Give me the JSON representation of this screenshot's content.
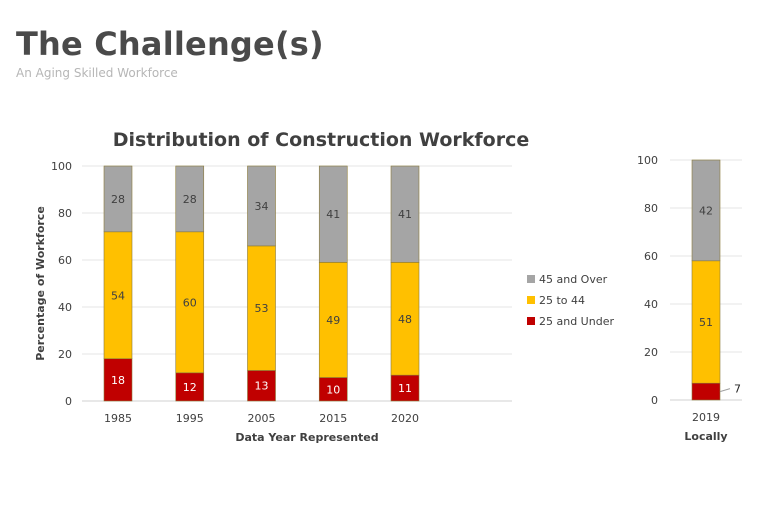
{
  "page": {
    "title": "The Challenge(s)",
    "subtitle": "An Aging Skilled Workforce"
  },
  "chart_data": [
    {
      "type": "bar",
      "stacked": true,
      "title": "Distribution of Construction Workforce",
      "xlabel": "Data Year Represented",
      "ylabel": "Percentage of Workforce",
      "ylim": [
        0,
        100
      ],
      "yticks": [
        0,
        20,
        40,
        60,
        80,
        100
      ],
      "grid": true,
      "legend_position": "right",
      "categories": [
        "1985",
        "1995",
        "2005",
        "2015",
        "2020"
      ],
      "series": [
        {
          "name": "25 and Under",
          "color": "#c00000",
          "values": [
            18,
            12,
            13,
            10,
            11
          ]
        },
        {
          "name": "25 to 44",
          "color": "#ffc000",
          "values": [
            54,
            60,
            53,
            49,
            48
          ]
        },
        {
          "name": "45 and Over",
          "color": "#a5a5a5",
          "values": [
            28,
            28,
            34,
            41,
            41
          ]
        }
      ]
    },
    {
      "type": "bar",
      "stacked": true,
      "title": "",
      "xlabel": "Locally",
      "ylabel": "",
      "ylim": [
        0,
        100
      ],
      "yticks": [
        0,
        20,
        40,
        60,
        80,
        100
      ],
      "grid": true,
      "categories": [
        "2019"
      ],
      "series": [
        {
          "name": "25 and Under",
          "color": "#c00000",
          "values": [
            7
          ]
        },
        {
          "name": "25 to 44",
          "color": "#ffc000",
          "values": [
            51
          ]
        },
        {
          "name": "45 and Over",
          "color": "#a5a5a5",
          "values": [
            42
          ]
        }
      ]
    }
  ]
}
